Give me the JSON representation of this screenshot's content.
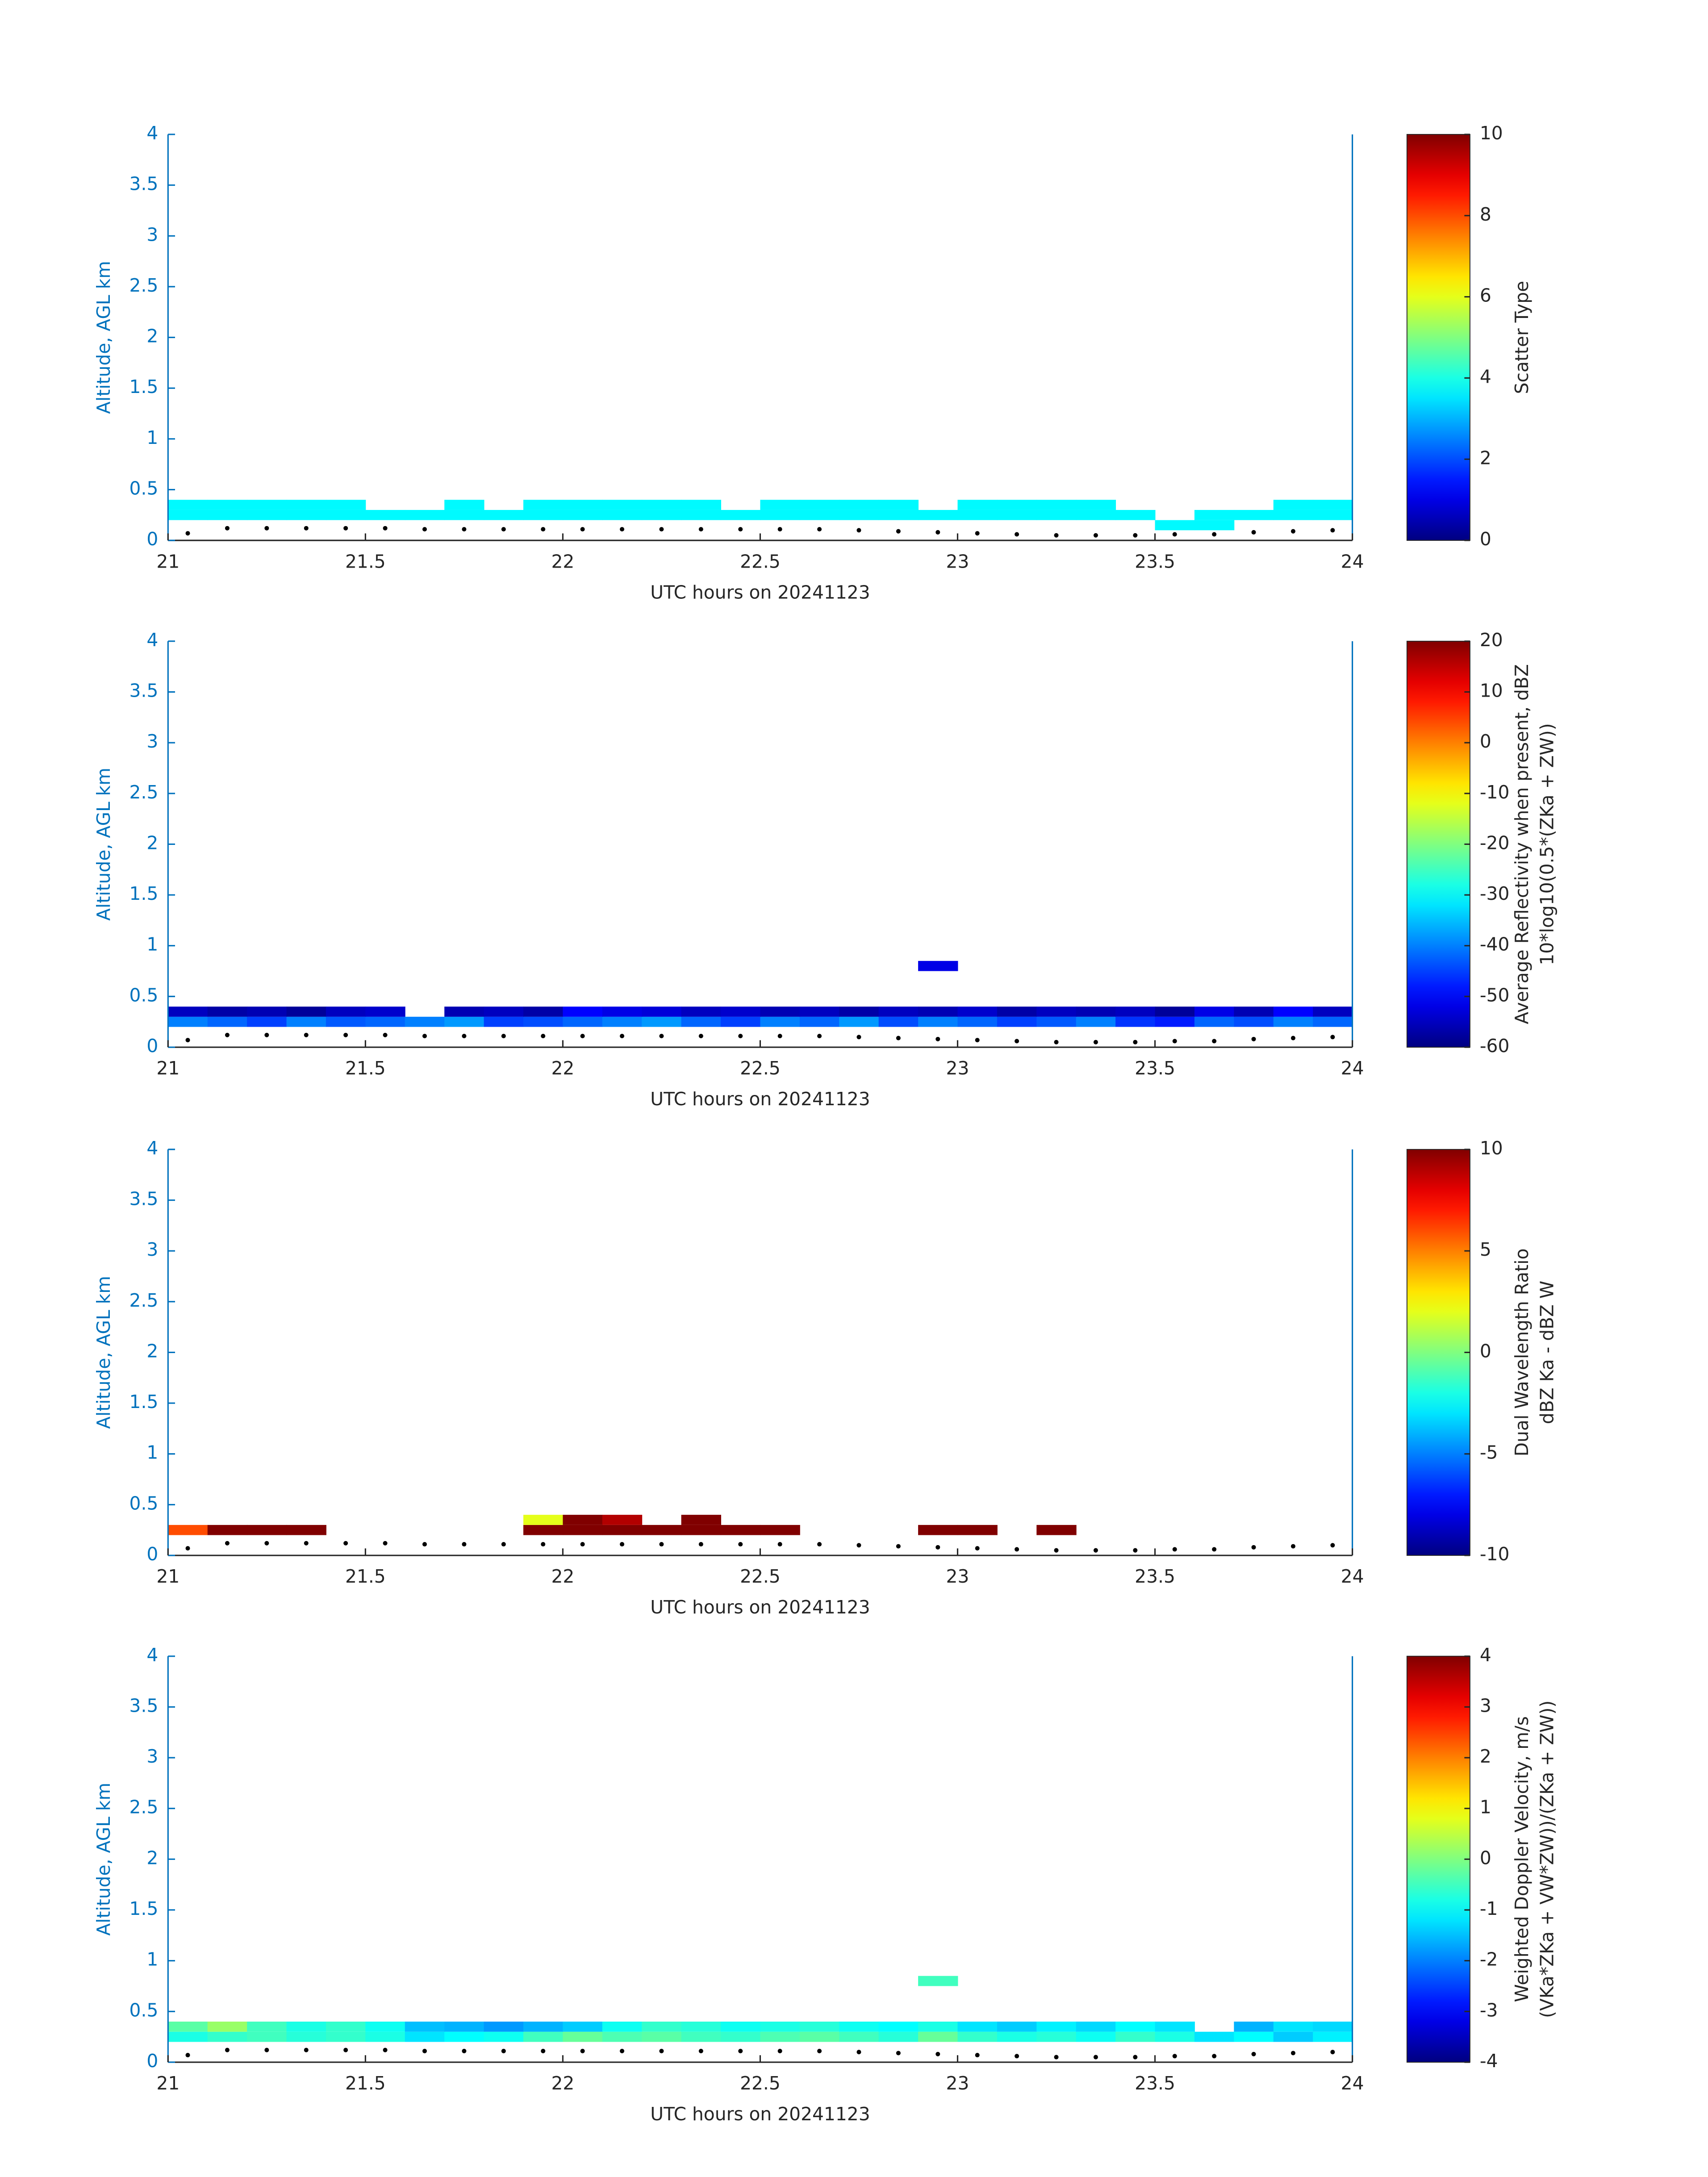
{
  "chart_data": [
    {
      "type": "heatmap",
      "xlabel": "UTC hours on 20241123",
      "ylabel": "Altitude, AGL km",
      "colorbar_label": [
        "Scatter Type"
      ],
      "colormap": "jet",
      "xlim": [
        21,
        24
      ],
      "xticks": [
        21,
        21.5,
        22,
        22.5,
        23,
        23.5,
        24
      ],
      "ylim": [
        0,
        4
      ],
      "yticks": [
        0,
        0.5,
        1,
        1.5,
        2,
        2.5,
        3,
        3.5,
        4
      ],
      "clim": [
        0,
        10
      ],
      "cticks": [
        0,
        2,
        4,
        6,
        8,
        10
      ],
      "x": [
        21.05,
        21.15,
        21.25,
        21.35,
        21.45,
        21.55,
        21.65,
        21.75,
        21.85,
        21.95,
        22.05,
        22.15,
        22.25,
        22.35,
        22.45,
        22.55,
        22.65,
        22.75,
        22.85,
        22.95,
        23.05,
        23.15,
        23.25,
        23.35,
        23.45,
        23.55,
        23.65,
        23.75,
        23.85,
        23.95
      ],
      "y": [
        0.15,
        0.25,
        0.35
      ],
      "z": [
        [
          null,
          null,
          null,
          null,
          null,
          null,
          null,
          null,
          null,
          null,
          null,
          null,
          null,
          null,
          null,
          null,
          null,
          null,
          null,
          null,
          null,
          null,
          null,
          null,
          null,
          3.7,
          3.7,
          null,
          null,
          null
        ],
        [
          3.7,
          3.7,
          3.7,
          3.7,
          3.7,
          3.7,
          3.7,
          3.7,
          3.7,
          3.7,
          3.7,
          3.7,
          3.7,
          3.7,
          3.7,
          3.7,
          3.7,
          3.7,
          3.7,
          3.7,
          3.7,
          3.7,
          3.7,
          3.7,
          3.7,
          null,
          3.7,
          3.7,
          3.7,
          3.7
        ],
        [
          3.7,
          3.7,
          3.7,
          3.7,
          3.7,
          null,
          null,
          3.7,
          null,
          3.7,
          3.7,
          3.7,
          3.7,
          3.7,
          null,
          3.7,
          3.7,
          3.7,
          3.7,
          null,
          3.7,
          3.7,
          3.7,
          3.7,
          null,
          null,
          null,
          null,
          3.7,
          3.7
        ]
      ],
      "surface": {
        "values": [
          0.07,
          0.12,
          0.12,
          0.12,
          0.12,
          0.12,
          0.11,
          0.11,
          0.11,
          0.11,
          0.11,
          0.11,
          0.11,
          0.11,
          0.11,
          0.11,
          0.11,
          0.1,
          0.09,
          0.08,
          0.07,
          0.06,
          0.05,
          0.05,
          0.05,
          0.06,
          0.06,
          0.08,
          0.09,
          0.1
        ],
        "color": "#000000"
      }
    },
    {
      "type": "heatmap",
      "xlabel": "UTC hours on 20241123",
      "ylabel": "Altitude, AGL km",
      "colorbar_label": [
        "Average Reflectivity when present, dBZ",
        "10*log10(0.5*(ZKa + ZW))"
      ],
      "colormap": "jet",
      "xlim": [
        21,
        24
      ],
      "xticks": [
        21,
        21.5,
        22,
        22.5,
        23,
        23.5,
        24
      ],
      "ylim": [
        0,
        4
      ],
      "yticks": [
        0,
        0.5,
        1,
        1.5,
        2,
        2.5,
        3,
        3.5,
        4
      ],
      "clim": [
        -60,
        20
      ],
      "cticks": [
        -60,
        -50,
        -40,
        -30,
        -20,
        -10,
        0,
        10,
        20
      ],
      "x": [
        21.05,
        21.15,
        21.25,
        21.35,
        21.45,
        21.55,
        21.65,
        21.75,
        21.85,
        21.95,
        22.05,
        22.15,
        22.25,
        22.35,
        22.45,
        22.55,
        22.65,
        22.75,
        22.85,
        22.95,
        23.05,
        23.15,
        23.25,
        23.35,
        23.45,
        23.55,
        23.65,
        23.75,
        23.85,
        23.95
      ],
      "y": [
        0.25,
        0.35,
        0.8
      ],
      "z": [
        [
          -40,
          -42,
          -45,
          -40,
          -43,
          -42,
          -40,
          -38,
          -45,
          -44,
          -42,
          -40,
          -38,
          -42,
          -45,
          -40,
          -42,
          -38,
          -44,
          -40,
          -42,
          -45,
          -43,
          -40,
          -46,
          -48,
          -42,
          -44,
          -40,
          -42
        ],
        [
          -55,
          -57,
          -56,
          -58,
          -55,
          -54,
          null,
          -56,
          -55,
          -57,
          -50,
          -52,
          -53,
          -55,
          -54,
          -56,
          -55,
          -57,
          -55,
          -56,
          -54,
          -57,
          -55,
          -56,
          -55,
          -58,
          -52,
          -56,
          -50,
          -55
        ],
        [
          null,
          null,
          null,
          null,
          null,
          null,
          null,
          null,
          null,
          null,
          null,
          null,
          null,
          null,
          null,
          null,
          null,
          null,
          null,
          -52,
          null,
          null,
          null,
          null,
          null,
          null,
          null,
          null,
          null,
          null
        ]
      ],
      "surface": {
        "values": [
          0.07,
          0.12,
          0.12,
          0.12,
          0.12,
          0.12,
          0.11,
          0.11,
          0.11,
          0.11,
          0.11,
          0.11,
          0.11,
          0.11,
          0.11,
          0.11,
          0.11,
          0.1,
          0.09,
          0.08,
          0.07,
          0.06,
          0.05,
          0.05,
          0.05,
          0.06,
          0.06,
          0.08,
          0.09,
          0.1
        ],
        "color": "#000000"
      }
    },
    {
      "type": "heatmap",
      "xlabel": "UTC hours on 20241123",
      "ylabel": "Altitude, AGL km",
      "colorbar_label": [
        "Dual Wavelength Ratio",
        "dBZ Ka - dBZ W"
      ],
      "colormap": "jet",
      "xlim": [
        21,
        24
      ],
      "xticks": [
        21,
        21.5,
        22,
        22.5,
        23,
        23.5,
        24
      ],
      "ylim": [
        0,
        4
      ],
      "yticks": [
        0,
        0.5,
        1,
        1.5,
        2,
        2.5,
        3,
        3.5,
        4
      ],
      "clim": [
        -10,
        10
      ],
      "cticks": [
        -10,
        -5,
        0,
        5,
        10
      ],
      "x": [
        21.05,
        21.15,
        21.25,
        21.35,
        21.45,
        21.55,
        21.65,
        21.75,
        21.85,
        21.95,
        22.05,
        22.15,
        22.25,
        22.35,
        22.45,
        22.55,
        22.65,
        22.75,
        22.85,
        22.95,
        23.05,
        23.15,
        23.25,
        23.35,
        23.45,
        23.55,
        23.65,
        23.75,
        23.85,
        23.95
      ],
      "y": [
        0.25,
        0.35
      ],
      "z": [
        [
          6,
          10,
          10,
          10,
          null,
          null,
          null,
          null,
          null,
          10,
          10,
          10,
          10,
          10,
          10,
          10,
          null,
          null,
          null,
          10,
          10,
          null,
          10,
          null,
          null,
          null,
          null,
          null,
          null,
          null
        ],
        [
          null,
          null,
          null,
          null,
          null,
          null,
          null,
          null,
          null,
          2,
          10,
          9,
          null,
          10,
          null,
          null,
          null,
          null,
          null,
          null,
          null,
          null,
          null,
          null,
          null,
          null,
          null,
          null,
          null,
          null
        ]
      ],
      "surface": {
        "values": [
          0.07,
          0.12,
          0.12,
          0.12,
          0.12,
          0.12,
          0.11,
          0.11,
          0.11,
          0.11,
          0.11,
          0.11,
          0.11,
          0.11,
          0.11,
          0.11,
          0.11,
          0.1,
          0.09,
          0.08,
          0.07,
          0.06,
          0.05,
          0.05,
          0.05,
          0.06,
          0.06,
          0.08,
          0.09,
          0.1
        ],
        "color": "#000000"
      }
    },
    {
      "type": "heatmap",
      "xlabel": "UTC hours on 20241123",
      "ylabel": "Altitude, AGL km",
      "colorbar_label": [
        "Weighted Doppler Velocity, m/s",
        "(VKa*ZKa + VW*ZW))/(ZKa + ZW))"
      ],
      "colormap": "jet",
      "xlim": [
        21,
        24
      ],
      "xticks": [
        21,
        21.5,
        22,
        22.5,
        23,
        23.5,
        24
      ],
      "ylim": [
        0,
        4
      ],
      "yticks": [
        0,
        0.5,
        1,
        1.5,
        2,
        2.5,
        3,
        3.5,
        4
      ],
      "clim": [
        -4,
        4
      ],
      "cticks": [
        -4,
        -3,
        -2,
        -1,
        0,
        1,
        2,
        3,
        4
      ],
      "x": [
        21.05,
        21.15,
        21.25,
        21.35,
        21.45,
        21.55,
        21.65,
        21.75,
        21.85,
        21.95,
        22.05,
        22.15,
        22.25,
        22.35,
        22.45,
        22.55,
        22.65,
        22.75,
        22.85,
        22.95,
        23.05,
        23.15,
        23.25,
        23.35,
        23.45,
        23.55,
        23.65,
        23.75,
        23.85,
        23.95
      ],
      "y": [
        0.25,
        0.35,
        0.8
      ],
      "z": [
        [
          -0.8,
          -0.6,
          -0.5,
          -0.7,
          -0.6,
          -0.8,
          -1.2,
          -1,
          -0.9,
          -0.5,
          -0.2,
          -0.4,
          -0.3,
          -0.5,
          -0.6,
          -0.4,
          -0.3,
          -0.5,
          -0.7,
          -0.2,
          -0.6,
          -0.8,
          -0.7,
          -0.9,
          -0.6,
          -0.8,
          -1.2,
          -1,
          -1.4,
          -1.1
        ],
        [
          -0.3,
          0.2,
          -0.5,
          -0.8,
          -0.6,
          -0.9,
          -1.5,
          -1.6,
          -1.8,
          -1.6,
          -1.4,
          -0.9,
          -0.6,
          -0.7,
          -0.9,
          -0.8,
          -0.7,
          -0.9,
          -1,
          -0.8,
          -1.2,
          -1.4,
          -1.1,
          -1.3,
          -1,
          -1.2,
          null,
          -1.6,
          -1.2,
          -1.3
        ],
        [
          null,
          null,
          null,
          null,
          null,
          null,
          null,
          null,
          null,
          null,
          null,
          null,
          null,
          null,
          null,
          null,
          null,
          null,
          null,
          -0.5,
          null,
          null,
          null,
          null,
          null,
          null,
          null,
          null,
          null,
          null
        ]
      ],
      "surface": {
        "values": [
          0.07,
          0.12,
          0.12,
          0.12,
          0.12,
          0.12,
          0.11,
          0.11,
          0.11,
          0.11,
          0.11,
          0.11,
          0.11,
          0.11,
          0.11,
          0.11,
          0.11,
          0.1,
          0.09,
          0.08,
          0.07,
          0.06,
          0.05,
          0.05,
          0.05,
          0.06,
          0.06,
          0.08,
          0.09,
          0.1
        ],
        "color": "#000000"
      }
    }
  ]
}
